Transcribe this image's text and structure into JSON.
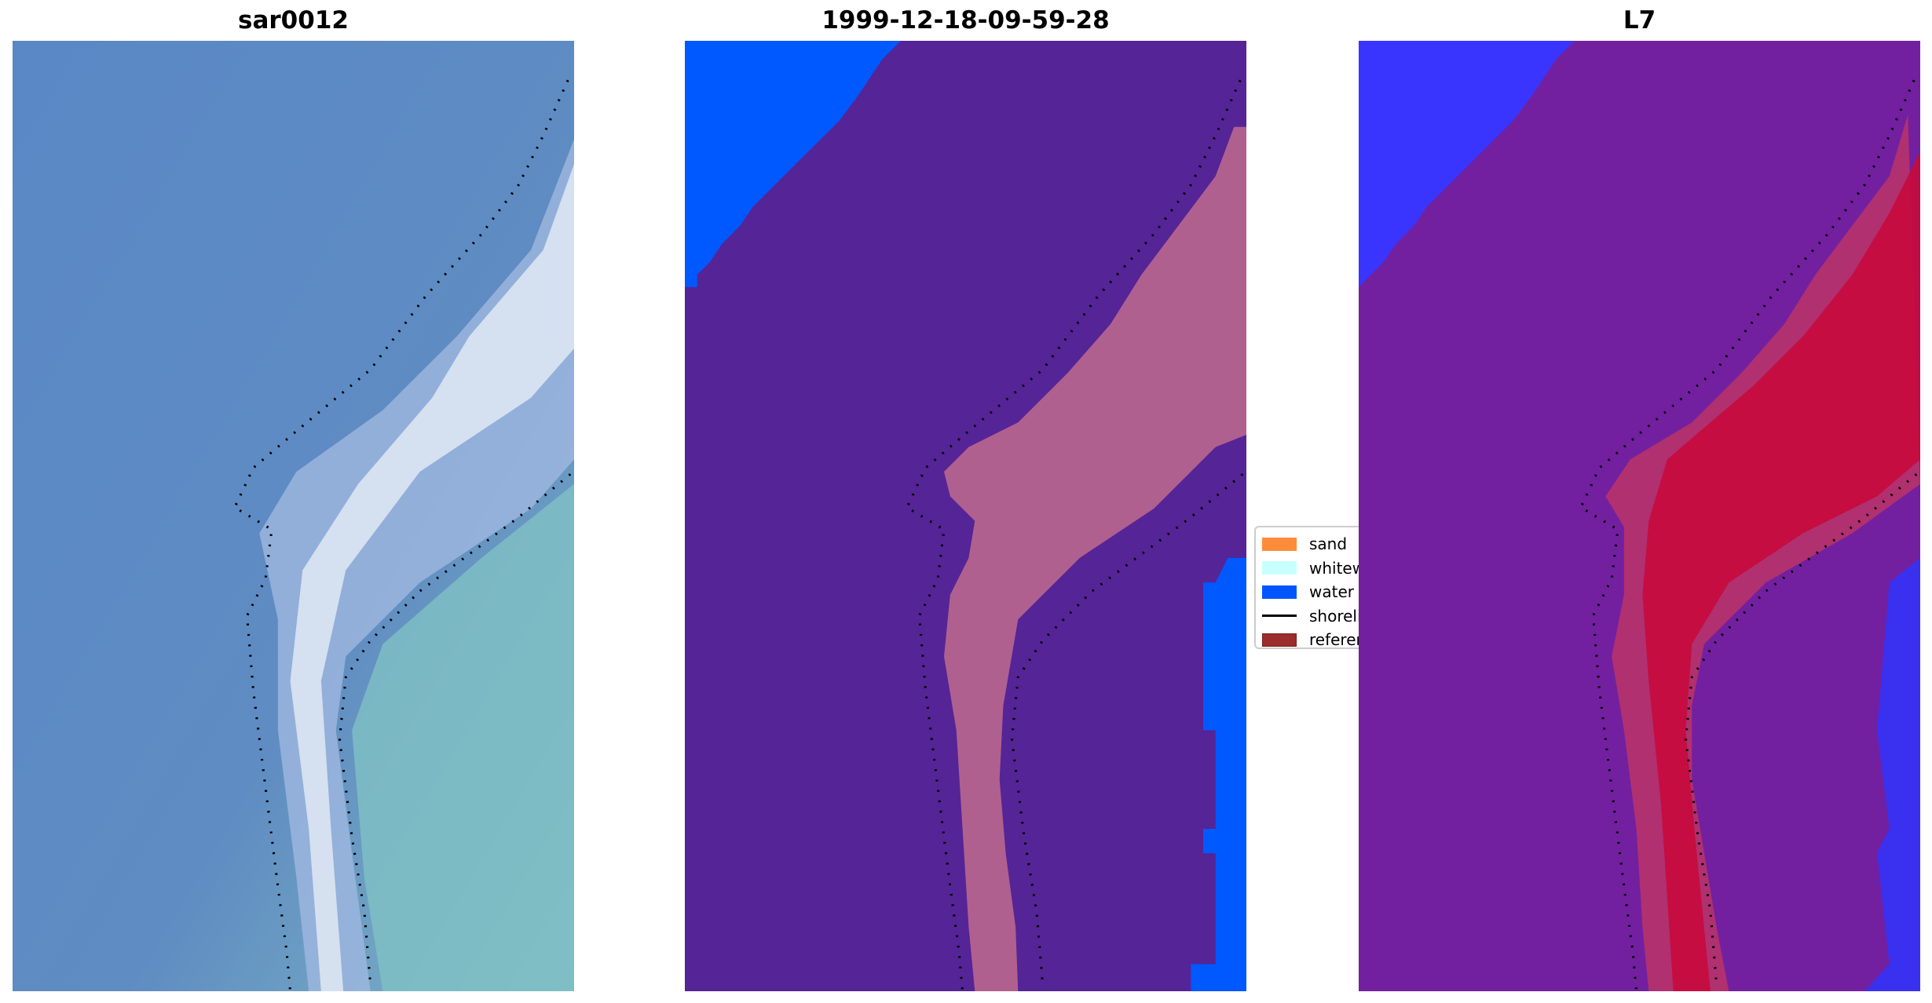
{
  "panels": [
    {
      "title": "sar0012",
      "image": "rgb-satellite-image"
    },
    {
      "title": "1999-12-18-09-59-28",
      "image": "classified-image"
    },
    {
      "title": "L7",
      "image": "ndwi-image"
    }
  ],
  "legend": {
    "items": [
      {
        "label": "sand",
        "color": "#ff8c3a",
        "kind": "patch"
      },
      {
        "label": "whitew",
        "color": "#c8ffff",
        "kind": "patch"
      },
      {
        "label": "water",
        "color": "#0055ff",
        "kind": "patch"
      },
      {
        "label": "shoreli",
        "color": "#000000",
        "kind": "line"
      },
      {
        "label": "referer",
        "color": "#9b2d2d",
        "kind": "patch"
      }
    ]
  },
  "colors": {
    "rgb_water": "#5b88c4",
    "class_land": "#552496",
    "class_water": "#0059ff",
    "class_sand": "#b0608f",
    "index_background": "#7220a0",
    "index_blue": "#3030ff",
    "index_red": "#c80a3c"
  }
}
